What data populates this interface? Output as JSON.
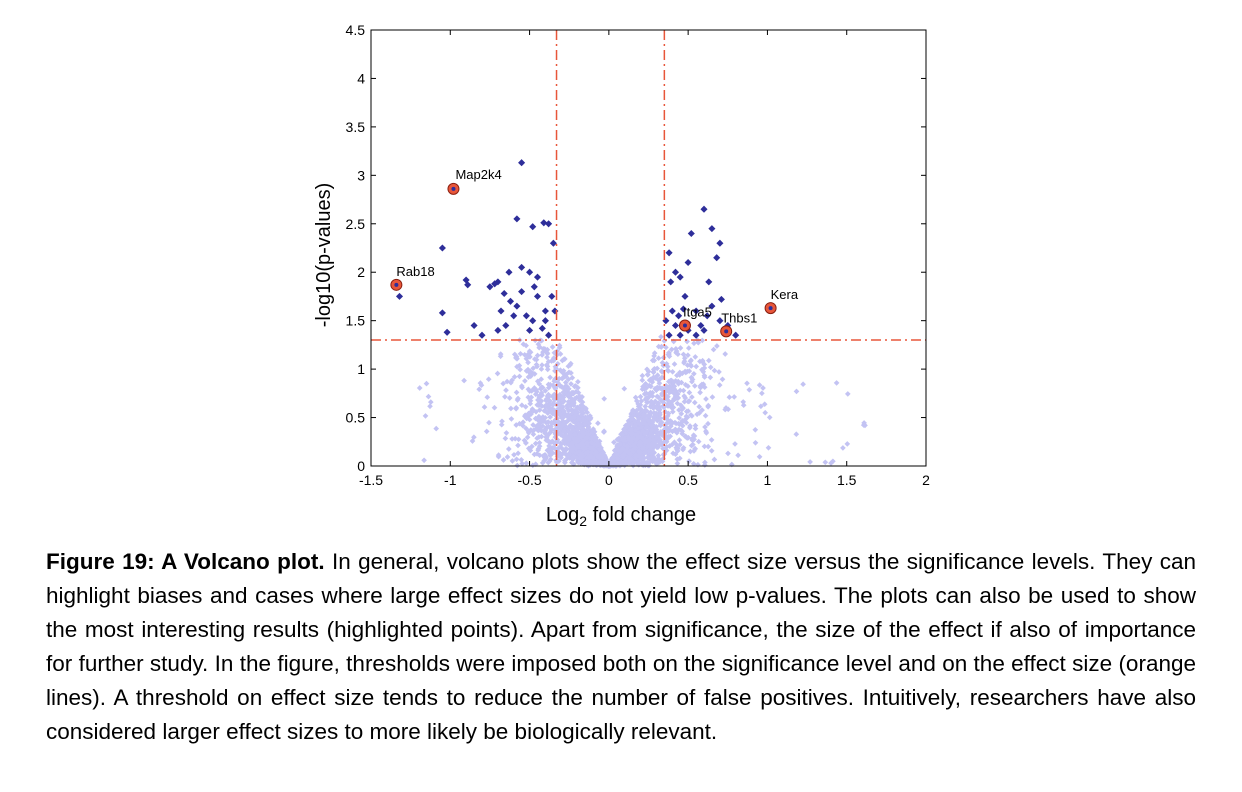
{
  "chart_data": {
    "type": "scatter",
    "title": "",
    "xlabel_main": "Log",
    "xlabel_sub": "2",
    "xlabel_rest": " fold change",
    "ylabel": "-log10(p-values)",
    "xlim": [
      -1.5,
      2
    ],
    "ylim": [
      0,
      4.5
    ],
    "x_ticks": [
      "-1.5",
      "-1",
      "-0.5",
      "0",
      "0.5",
      "1",
      "1.5",
      "2"
    ],
    "y_ticks": [
      "0",
      "0.5",
      "1",
      "1.5",
      "2",
      "2.5",
      "3",
      "3.5",
      "4",
      "4.5"
    ],
    "thresholds": {
      "x": [
        -0.33,
        0.35
      ],
      "y": 1.3,
      "color": "#e8563a"
    },
    "colors": {
      "background": "#c3c3f3",
      "significant": "#2e2e9a",
      "highlight": "#e8563a"
    },
    "significant_points": [
      [
        -0.55,
        3.13
      ],
      [
        -0.48,
        2.47
      ],
      [
        -0.41,
        2.51
      ],
      [
        -0.38,
        2.5
      ],
      [
        -0.58,
        2.55
      ],
      [
        -1.05,
        2.25
      ],
      [
        -0.75,
        1.85
      ],
      [
        -0.7,
        1.9
      ],
      [
        -0.72,
        1.88
      ],
      [
        -0.68,
        1.6
      ],
      [
        -0.9,
        1.92
      ],
      [
        -0.89,
        1.87
      ],
      [
        -0.63,
        2.0
      ],
      [
        -0.66,
        1.78
      ],
      [
        -0.55,
        2.05
      ],
      [
        -0.5,
        2.0
      ],
      [
        -0.45,
        1.95
      ],
      [
        -0.35,
        2.3
      ],
      [
        -0.4,
        1.6
      ],
      [
        -0.5,
        1.4
      ],
      [
        -0.6,
        1.55
      ],
      [
        -0.8,
        1.35
      ],
      [
        -0.85,
        1.45
      ],
      [
        -0.62,
        1.7
      ],
      [
        -0.58,
        1.65
      ],
      [
        -0.52,
        1.55
      ],
      [
        -0.48,
        1.5
      ],
      [
        -0.42,
        1.42
      ],
      [
        -0.38,
        1.35
      ],
      [
        -0.36,
        1.75
      ],
      [
        -0.45,
        1.75
      ],
      [
        -1.32,
        1.75
      ],
      [
        -1.05,
        1.58
      ],
      [
        -1.02,
        1.38
      ],
      [
        -0.34,
        1.6
      ],
      [
        -0.55,
        1.8
      ],
      [
        -0.65,
        1.45
      ],
      [
        -0.7,
        1.4
      ],
      [
        -0.47,
        1.85
      ],
      [
        -0.4,
        1.5
      ],
      [
        0.38,
        2.2
      ],
      [
        0.42,
        2.0
      ],
      [
        0.45,
        1.95
      ],
      [
        0.5,
        2.1
      ],
      [
        0.52,
        2.4
      ],
      [
        0.6,
        2.65
      ],
      [
        0.65,
        2.45
      ],
      [
        0.7,
        2.3
      ],
      [
        0.68,
        2.15
      ],
      [
        0.63,
        1.9
      ],
      [
        0.48,
        1.75
      ],
      [
        0.4,
        1.6
      ],
      [
        0.44,
        1.55
      ],
      [
        0.55,
        1.6
      ],
      [
        0.62,
        1.55
      ],
      [
        0.7,
        1.5
      ],
      [
        0.65,
        1.65
      ],
      [
        0.58,
        1.45
      ],
      [
        0.5,
        1.4
      ],
      [
        0.42,
        1.45
      ],
      [
        0.38,
        1.35
      ],
      [
        0.45,
        1.35
      ],
      [
        0.55,
        1.35
      ],
      [
        0.6,
        1.4
      ],
      [
        0.75,
        1.45
      ],
      [
        0.8,
        1.35
      ],
      [
        0.71,
        1.72
      ],
      [
        0.39,
        1.9
      ],
      [
        0.36,
        1.5
      ],
      [
        0.47,
        1.62
      ]
    ],
    "highlighted_genes": [
      {
        "name": "Map2k4",
        "x": -0.98,
        "y": 2.86
      },
      {
        "name": "Rab18",
        "x": -1.34,
        "y": 1.87
      },
      {
        "name": "Kera",
        "x": 1.02,
        "y": 1.63
      },
      {
        "name": "Itga5",
        "x": 0.48,
        "y": 1.45
      },
      {
        "name": "Thbs1",
        "x": 0.74,
        "y": 1.39
      }
    ]
  },
  "caption": {
    "bold": "Figure 19: A Volcano plot.",
    "text": " In general, volcano plots show the effect size versus the significance levels. They can highlight biases and cases where large effect sizes do not yield low p-values. The plots can also be used to show the most interesting results (highlighted points). Apart from significance, the size of the effect if also of importance for further study. In the figure, thresholds were imposed both on the significance level and on the effect size (orange lines). A threshold on effect size tends to reduce the number of false positives. Intuitively, researchers have also considered larger effect sizes to more likely be biologically relevant."
  }
}
